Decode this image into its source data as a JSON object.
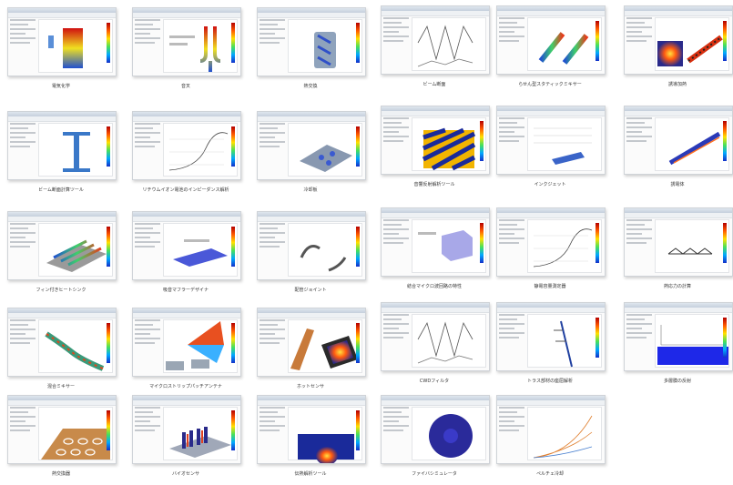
{
  "apps": [
    {
      "label": "電気化学"
    },
    {
      "label": "音叉"
    },
    {
      "label": "熱交換"
    },
    {
      "label": "ビーム断面"
    },
    {
      "label": "らせん型スタティックミキサー"
    },
    {
      "label": "誘導加熱"
    },
    {
      "label": "ビーム断面計算ツール"
    },
    {
      "label": "リチウムイオン電池のインピーダンス解析"
    },
    {
      "label": "冷却板"
    },
    {
      "label": "音響反射解析ツール"
    },
    {
      "label": "インクジェット"
    },
    {
      "label": "誘電体"
    },
    {
      "label": "フィン付きヒートシンク"
    },
    {
      "label": "吸音マフラーデザイナ"
    },
    {
      "label": "配管ジョイント"
    },
    {
      "label": "結合マイクロ波回路の特性"
    },
    {
      "label": "静電容量測定器"
    },
    {
      "label": "熱応力の計算"
    },
    {
      "label": "混合ミキサー"
    },
    {
      "label": "マイクロストリップパッチアンテナ"
    },
    {
      "label": "ホットセンサ"
    },
    {
      "label": "CWDフィルタ"
    },
    {
      "label": "トラス部材の座屈解析"
    },
    {
      "label": "多層膜の反射"
    },
    {
      "label": "熱交換器"
    },
    {
      "label": "バイオセンサ"
    },
    {
      "label": "伝熱解析ツール"
    },
    {
      "label": "ファイバシミュレータ"
    },
    {
      "label": "ペルチェ冷却"
    }
  ],
  "colors": {
    "accent": "#1e46c8",
    "border": "#cfd3d8",
    "caption": "#333333"
  }
}
